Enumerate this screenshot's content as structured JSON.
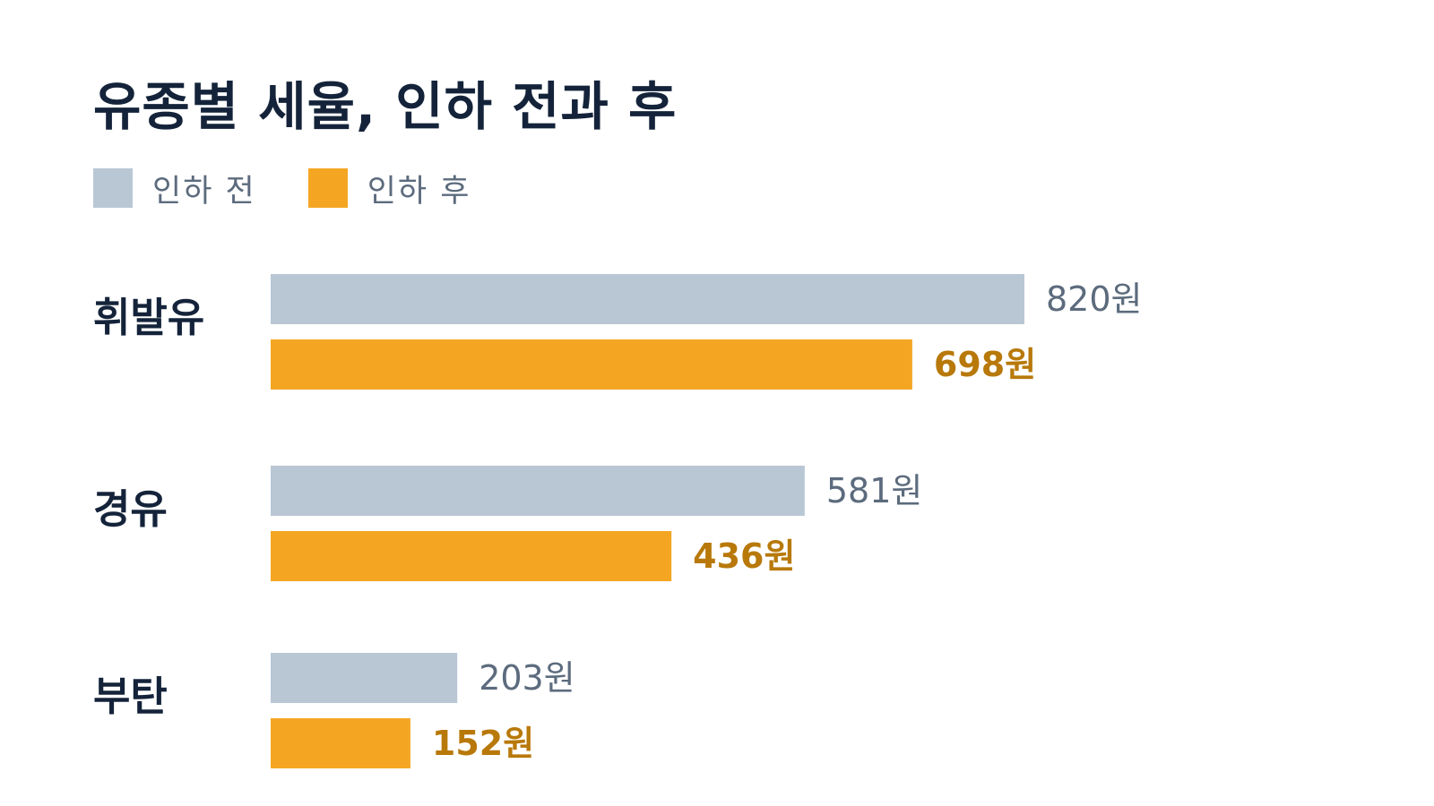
{
  "chart_data": {
    "type": "bar",
    "orientation": "horizontal",
    "title": "유종별 세율, 인하 전과 후",
    "categories": [
      "휘발유",
      "경유",
      "부탄"
    ],
    "series": [
      {
        "name": "인하 전",
        "values": [
          820,
          581,
          203
        ],
        "labels": [
          "820원",
          "581원",
          "203원"
        ],
        "color": "#b9c7d4"
      },
      {
        "name": "인하 후",
        "values": [
          698,
          436,
          152
        ],
        "labels": [
          "698원",
          "436원",
          "152원"
        ],
        "color": "#f4a623"
      }
    ],
    "xlim": [
      0,
      820
    ],
    "grid": false,
    "legend": "top-left",
    "xlabel": "",
    "ylabel": ""
  }
}
